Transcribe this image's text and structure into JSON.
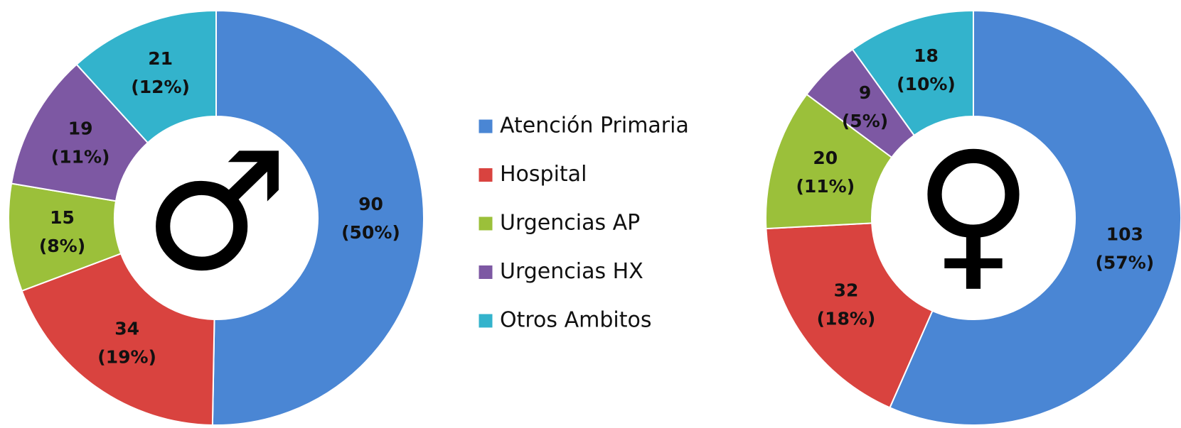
{
  "chart_data": [
    {
      "type": "donut",
      "symbol": "♂",
      "categories": [
        "Atención Primaria",
        "Hospital",
        "Urgencias AP",
        "Urgencias HX",
        "Otros Ambitos"
      ],
      "colors": [
        "#4a86d4",
        "#d9433f",
        "#9bc03a",
        "#7d58a3",
        "#33b3cc"
      ],
      "values": [
        90,
        34,
        15,
        19,
        21
      ],
      "percent_labels": [
        "(50%)",
        "(19%)",
        "(8%)",
        "(11%)",
        "(12%)"
      ],
      "legend": "center"
    },
    {
      "type": "donut",
      "symbol": "♀",
      "categories": [
        "Atención Primaria",
        "Hospital",
        "Urgencias AP",
        "Urgencias HX",
        "Otros Ambitos"
      ],
      "colors": [
        "#4a86d4",
        "#d9433f",
        "#9bc03a",
        "#7d58a3",
        "#33b3cc"
      ],
      "values": [
        103,
        32,
        20,
        9,
        18
      ],
      "percent_labels": [
        "(57%)",
        "(18%)",
        "(11%)",
        "(5%)",
        "(10%)"
      ]
    }
  ]
}
